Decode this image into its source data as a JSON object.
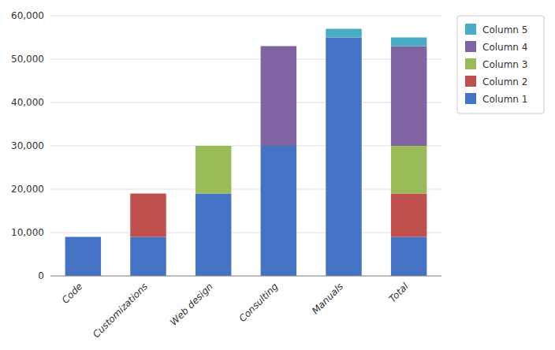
{
  "chart_data": {
    "type": "bar",
    "stacked": true,
    "categories": [
      "Code",
      "Customizations",
      "Web design",
      "Consulting",
      "Manuals",
      "Total"
    ],
    "series": [
      {
        "name": "Column 1",
        "color": "#4472C4",
        "values": [
          9000,
          9000,
          19000,
          30000,
          55000,
          9000
        ]
      },
      {
        "name": "Column 2",
        "color": "#C0504D",
        "values": [
          0,
          10000,
          0,
          0,
          0,
          10000
        ]
      },
      {
        "name": "Column 3",
        "color": "#9BBB59",
        "values": [
          0,
          0,
          11000,
          0,
          0,
          11000
        ]
      },
      {
        "name": "Column 4",
        "color": "#8064A2",
        "values": [
          0,
          0,
          0,
          23000,
          0,
          23000
        ]
      },
      {
        "name": "Column 5",
        "color": "#4BACC6",
        "values": [
          0,
          0,
          0,
          0,
          2000,
          2000
        ]
      }
    ],
    "ylim": [
      0,
      60000
    ],
    "yticks": [
      0,
      {
        "value": 10000,
        "label": "10,000"
      },
      {
        "value": 20000,
        "label": "20,000"
      },
      {
        "value": 30000,
        "label": "30,000"
      },
      {
        "value": 40000,
        "label": "40,000"
      },
      {
        "value": 50000,
        "label": "50,000"
      },
      {
        "value": 60000,
        "label": "60,000"
      }
    ],
    "grid": true,
    "legend": "right"
  }
}
